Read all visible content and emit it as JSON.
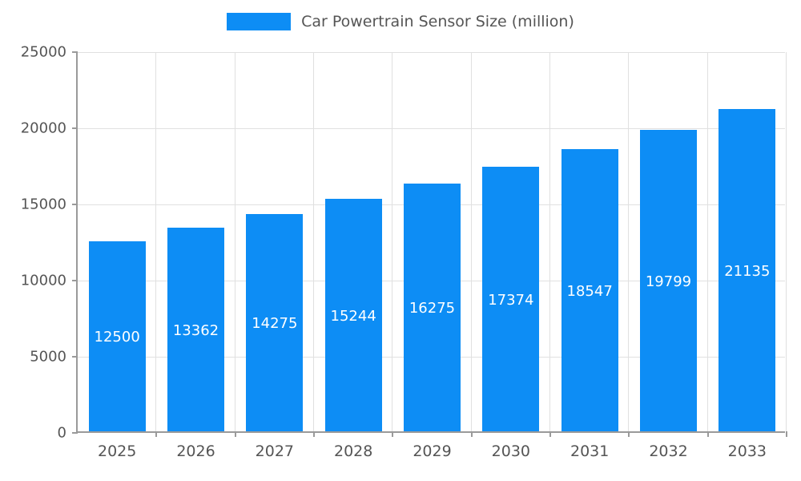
{
  "chart_data": {
    "type": "bar",
    "title": "Car Powertrain Sensor Size (million)",
    "categories": [
      "2025",
      "2026",
      "2027",
      "2028",
      "2029",
      "2030",
      "2031",
      "2032",
      "2033"
    ],
    "values": [
      12500,
      13362,
      14275,
      15244,
      16275,
      17374,
      18547,
      19799,
      21135
    ],
    "series": [
      {
        "name": "Car Powertrain Sensor Size (million)",
        "values": [
          12500,
          13362,
          14275,
          15244,
          16275,
          17374,
          18547,
          19799,
          21135
        ]
      }
    ],
    "xlabel": "",
    "ylabel": "",
    "ylim": [
      0,
      25000
    ],
    "yticks": [
      0,
      5000,
      10000,
      15000,
      20000,
      25000
    ],
    "grid": true,
    "legend_position": "top",
    "bar_color": "#0d8df5",
    "value_label_color": "#ffffff",
    "axis_text_color": "#555555",
    "axis_line_color": "#9a9a9a",
    "gridline_color": "#e0e0e0",
    "background_color": "#ffffff"
  }
}
